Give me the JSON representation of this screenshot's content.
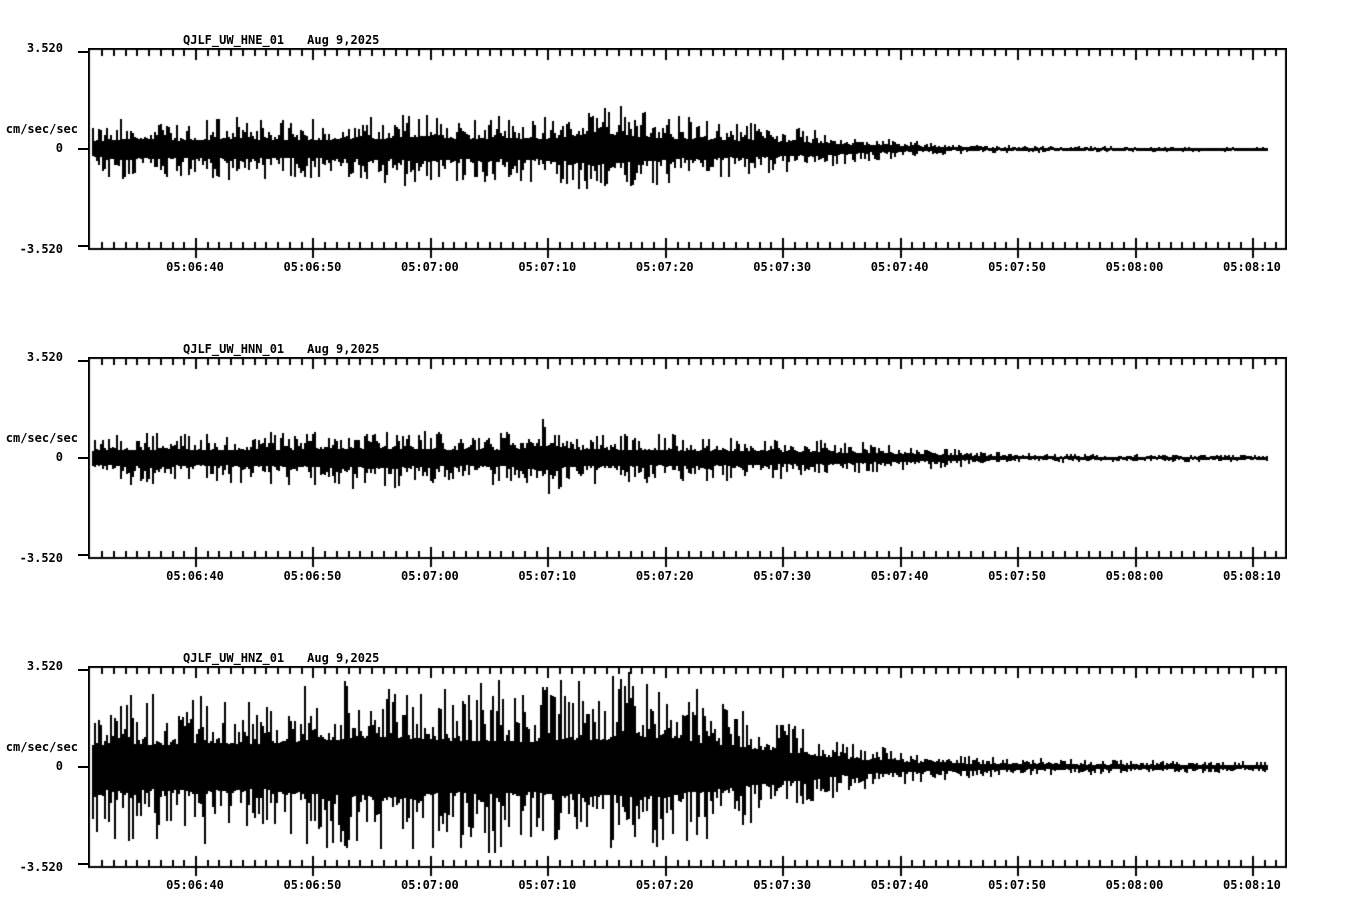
{
  "page": {
    "background_color": "#ffffff",
    "ink_color": "#000000"
  },
  "chart_data": {
    "type": "line",
    "subtype": "seismogram",
    "date_label": "Aug 9,2025",
    "ylabel": "cm/sec/sec",
    "ylim": [
      -3.52,
      3.52
    ],
    "y_axis": {
      "max_label": "3.520",
      "zero_label": "0",
      "min_label": "-3.520",
      "units_label": "cm/sec/sec"
    },
    "x_ticks": [
      "05:06:40",
      "05:06:50",
      "05:07:00",
      "05:07:10",
      "05:07:20",
      "05:07:30",
      "05:07:40",
      "05:07:50",
      "05:08:00",
      "05:08:10"
    ],
    "x_major_interval_s": 10,
    "x_minor_interval_s": 1,
    "x_range_start": "05:06:31",
    "x_range_end": "05:08:13",
    "grid": false,
    "legend": "none",
    "series": [
      {
        "name": "QJLF_UW_HNE_01",
        "channel": "HNE",
        "envelope_units": "cm/sec/sec peak amplitude vs fraction of trace duration",
        "envelope": [
          [
            0,
            0.9
          ],
          [
            0.03,
            1.2
          ],
          [
            0.07,
            1.0
          ],
          [
            0.12,
            1.2
          ],
          [
            0.17,
            1.05
          ],
          [
            0.22,
            1.15
          ],
          [
            0.26,
            1.3
          ],
          [
            0.28,
            1.55
          ],
          [
            0.31,
            1.15
          ],
          [
            0.35,
            1.3
          ],
          [
            0.39,
            1.2
          ],
          [
            0.43,
            1.9
          ],
          [
            0.46,
            1.5
          ],
          [
            0.49,
            1.25
          ],
          [
            0.53,
            1.1
          ],
          [
            0.57,
            0.95
          ],
          [
            0.61,
            0.75
          ],
          [
            0.65,
            0.5
          ],
          [
            0.69,
            0.32
          ],
          [
            0.73,
            0.2
          ],
          [
            0.79,
            0.13
          ],
          [
            0.88,
            0.1
          ],
          [
            1,
            0.08
          ]
        ]
      },
      {
        "name": "QJLF_UW_HNN_01",
        "channel": "HNN",
        "envelope_units": "cm/sec/sec peak amplitude vs fraction of trace duration",
        "envelope": [
          [
            0,
            0.8
          ],
          [
            0.04,
            1.0
          ],
          [
            0.09,
            0.9
          ],
          [
            0.14,
            0.95
          ],
          [
            0.19,
            1.05
          ],
          [
            0.24,
            1.15
          ],
          [
            0.28,
            1.05
          ],
          [
            0.32,
            0.95
          ],
          [
            0.36,
            1.05
          ],
          [
            0.38,
            1.5
          ],
          [
            0.41,
            1.0
          ],
          [
            0.45,
            0.95
          ],
          [
            0.5,
            0.9
          ],
          [
            0.55,
            0.85
          ],
          [
            0.6,
            0.75
          ],
          [
            0.65,
            0.6
          ],
          [
            0.7,
            0.45
          ],
          [
            0.75,
            0.28
          ],
          [
            0.8,
            0.18
          ],
          [
            0.88,
            0.14
          ],
          [
            1,
            0.12
          ]
        ]
      },
      {
        "name": "QJLF_UW_HNZ_01",
        "channel": "HNZ",
        "envelope_units": "cm/sec/sec peak amplitude vs fraction of trace duration",
        "envelope": [
          [
            0,
            2.4
          ],
          [
            0.02,
            2.9
          ],
          [
            0.06,
            2.6
          ],
          [
            0.1,
            2.9
          ],
          [
            0.14,
            2.7
          ],
          [
            0.18,
            3.1
          ],
          [
            0.22,
            3.4
          ],
          [
            0.25,
            3.6
          ],
          [
            0.28,
            3.3
          ],
          [
            0.31,
            3.0
          ],
          [
            0.34,
            3.2
          ],
          [
            0.37,
            3.0
          ],
          [
            0.4,
            3.3
          ],
          [
            0.43,
            3.2
          ],
          [
            0.46,
            3.6
          ],
          [
            0.49,
            3.4
          ],
          [
            0.52,
            2.9
          ],
          [
            0.55,
            2.4
          ],
          [
            0.58,
            1.9
          ],
          [
            0.61,
            1.45
          ],
          [
            0.64,
            1.0
          ],
          [
            0.67,
            0.75
          ],
          [
            0.7,
            0.55
          ],
          [
            0.74,
            0.42
          ],
          [
            0.79,
            0.33
          ],
          [
            0.85,
            0.28
          ],
          [
            0.92,
            0.24
          ],
          [
            1,
            0.2
          ]
        ]
      }
    ]
  }
}
